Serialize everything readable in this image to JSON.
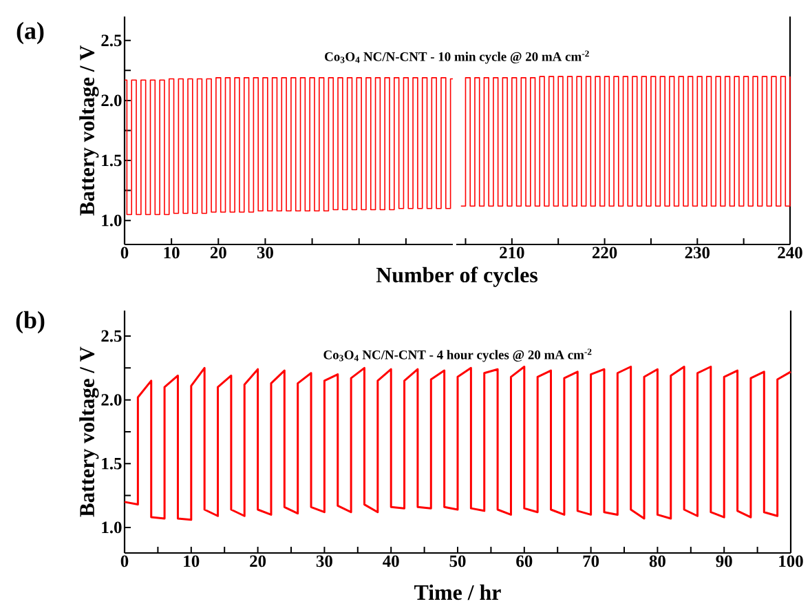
{
  "chart_data": [
    {
      "type": "step",
      "title": "Co$_{3}$O$_{4}$ NC/N-CNT - 10 min cycle @ 20 mA cm$^{-2}$",
      "xlabel": "Number of cycles",
      "ylabel": "Battery voltage / V",
      "annotations": [
        "(a)"
      ],
      "xlim": [
        0,
        70
      ],
      "ylim": [
        0.8,
        2.7
      ],
      "xticks": [
        0,
        10,
        20,
        30,
        {
          "value": 40,
          "label": null
        },
        {
          "value": 50,
          "label": null
        },
        {
          "value": 60,
          "label": null
        }
      ],
      "yticks": [
        {
          "value": 1,
          "label": "1.0"
        },
        {
          "value": 1.25,
          "label": null
        },
        {
          "value": 1.5,
          "label": "1.5"
        },
        {
          "value": 1.75,
          "label": null
        },
        {
          "value": 2,
          "label": "2.0"
        },
        {
          "value": 2.25,
          "label": null
        },
        {
          "value": 2.5,
          "label": "2.5"
        }
      ],
      "series": [
        {
          "color": "#ff0000",
          "x": [
            0,
            0.5,
            1.5,
            2.5,
            3.5,
            4.5,
            5.5,
            6.5,
            7.5,
            8.5,
            9.5,
            10.5,
            11.5,
            12.5,
            13.5,
            14.5,
            15.5,
            16.5,
            17.5,
            18.5,
            19.5,
            20.5,
            21.5,
            22.5,
            23.5,
            24.5,
            25.5,
            26.5,
            27.5,
            28.5,
            29.5,
            30.5,
            31.5,
            32.5,
            33.5,
            34.5,
            35.5,
            36.5,
            37.5,
            38.5,
            39.5,
            40.5,
            41.5,
            42.5,
            43.5,
            44.5,
            45.5,
            46.5,
            47.5,
            48.5,
            49.5,
            50.5,
            51.5,
            52.5,
            53.5,
            54.5,
            55.5,
            56.5,
            57.5,
            58.5,
            59.5,
            60.5,
            61.5,
            62.5,
            63.5,
            64.5,
            65.5,
            66.5,
            67.5,
            68.5,
            69.5,
            70
          ],
          "values": [
            2.17,
            1.05,
            2.17,
            1.05,
            2.17,
            1.05,
            2.17,
            1.05,
            2.17,
            1.05,
            2.18,
            1.06,
            2.18,
            1.06,
            2.18,
            1.06,
            2.18,
            1.06,
            2.18,
            1.07,
            2.19,
            1.07,
            2.19,
            1.07,
            2.19,
            1.07,
            2.19,
            1.07,
            2.19,
            1.08,
            2.19,
            1.08,
            2.19,
            1.08,
            2.19,
            1.08,
            2.19,
            1.08,
            2.19,
            1.08,
            2.19,
            1.08,
            2.19,
            1.08,
            2.19,
            1.09,
            2.19,
            1.09,
            2.19,
            1.09,
            2.19,
            1.09,
            2.19,
            1.09,
            2.19,
            1.09,
            2.19,
            1.09,
            2.19,
            1.1,
            2.19,
            1.1,
            2.19,
            1.1,
            2.19,
            1.1,
            2.19,
            1.1,
            2.19,
            1.1,
            2.18,
            2.18
          ]
        }
      ]
    },
    {
      "type": "step",
      "tick_labels": "x",
      "xlim": [
        204,
        240
      ],
      "ylim": [
        0.8,
        2.7
      ],
      "xticks": [
        {
          "value": 205,
          "label": null
        },
        210,
        {
          "value": 215,
          "label": null
        },
        220,
        {
          "value": 225,
          "label": null
        },
        230,
        {
          "value": 235,
          "label": null
        },
        240
      ],
      "series": [
        {
          "color": "#ff0000",
          "x": [
            204.5,
            205,
            205.5,
            206,
            206.5,
            207,
            207.5,
            208,
            208.5,
            209,
            209.5,
            210,
            210.5,
            211,
            211.5,
            212,
            212.5,
            213,
            213.5,
            214,
            214.5,
            215,
            215.5,
            216,
            216.5,
            217,
            217.5,
            218,
            218.5,
            219,
            219.5,
            220,
            220.5,
            221,
            221.5,
            222,
            222.5,
            223,
            223.5,
            224,
            224.5,
            225,
            225.5,
            226,
            226.5,
            227,
            227.5,
            228,
            228.5,
            229,
            229.5,
            230,
            230.5,
            231,
            231.5,
            232,
            232.5,
            233,
            233.5,
            234,
            234.5,
            235,
            235.5,
            236,
            236.5,
            237,
            237.5,
            238,
            238.5,
            239,
            239.5,
            240
          ],
          "values": [
            1.12,
            2.19,
            1.12,
            2.19,
            1.12,
            2.19,
            1.12,
            2.19,
            1.12,
            2.19,
            1.12,
            2.19,
            1.12,
            2.19,
            1.12,
            2.19,
            1.12,
            2.2,
            1.12,
            2.2,
            1.12,
            2.2,
            1.12,
            2.2,
            1.12,
            2.2,
            1.12,
            2.2,
            1.12,
            2.2,
            1.12,
            2.2,
            1.12,
            2.2,
            1.12,
            2.2,
            1.12,
            2.2,
            1.12,
            2.2,
            1.12,
            2.2,
            1.12,
            2.2,
            1.12,
            2.2,
            1.12,
            2.2,
            1.12,
            2.2,
            1.12,
            2.2,
            1.12,
            2.2,
            1.12,
            2.2,
            1.12,
            2.2,
            1.12,
            2.2,
            1.12,
            2.2,
            1.12,
            2.2,
            1.12,
            2.2,
            1.12,
            2.2,
            1.12,
            2.2,
            1.12,
            2.2
          ]
        }
      ]
    },
    {
      "type": "line",
      "title": "Co$_{3}$O$_{4}$ NC/N-CNT - 4 hour cycles @ 20 mA cm$^{-2}$",
      "xlabel": "Time / hr",
      "ylabel": "Battery voltage / V",
      "annotations": [
        "(b)"
      ],
      "xlim": [
        0,
        100
      ],
      "ylim": [
        0.8,
        2.7
      ],
      "xticks": [
        0,
        {
          "value": 5,
          "label": null
        },
        10,
        {
          "value": 15,
          "label": null
        },
        20,
        {
          "value": 25,
          "label": null
        },
        30,
        {
          "value": 35,
          "label": null
        },
        40,
        {
          "value": 45,
          "label": null
        },
        50,
        {
          "value": 55,
          "label": null
        },
        60,
        {
          "value": 65,
          "label": null
        },
        70,
        {
          "value": 75,
          "label": null
        },
        80,
        {
          "value": 85,
          "label": null
        },
        90,
        {
          "value": 95,
          "label": null
        },
        100
      ],
      "yticks": [
        {
          "value": 1,
          "label": "1.0"
        },
        {
          "value": 1.25,
          "label": null
        },
        {
          "value": 1.5,
          "label": "1.5"
        },
        {
          "value": 1.75,
          "label": null
        },
        {
          "value": 2,
          "label": "2.0"
        },
        {
          "value": 2.25,
          "label": null
        },
        {
          "value": 2.5,
          "label": "2.5"
        }
      ],
      "series": [
        {
          "color": "#ff0000",
          "x": [
            0,
            2,
            2,
            4,
            4,
            6,
            6,
            8,
            8,
            10,
            10,
            12,
            12,
            14,
            14,
            16,
            16,
            18,
            18,
            20,
            20,
            22,
            22,
            24,
            24,
            26,
            26,
            28,
            28,
            30,
            30,
            32,
            32,
            34,
            34,
            36,
            36,
            38,
            38,
            40,
            40,
            42,
            42,
            44,
            44,
            46,
            46,
            48,
            48,
            50,
            50,
            52,
            52,
            54,
            54,
            56,
            56,
            58,
            58,
            60,
            60,
            62,
            62,
            64,
            64,
            66,
            66,
            68,
            68,
            70,
            70,
            72,
            72,
            74,
            74,
            76,
            76,
            78,
            78,
            80,
            80,
            82,
            82,
            84,
            84,
            86,
            86,
            88,
            88,
            90,
            90,
            92,
            92,
            94,
            94,
            96,
            96,
            98,
            98,
            100
          ],
          "values": [
            1.2,
            1.18,
            2.02,
            2.15,
            1.08,
            1.07,
            2.1,
            2.19,
            1.07,
            1.06,
            2.11,
            2.25,
            1.14,
            1.09,
            2.1,
            2.19,
            1.14,
            1.09,
            2.12,
            2.24,
            1.14,
            1.1,
            2.13,
            2.23,
            1.16,
            1.11,
            2.13,
            2.21,
            1.16,
            1.12,
            2.15,
            2.2,
            1.17,
            1.12,
            2.17,
            2.25,
            1.18,
            1.12,
            2.15,
            2.24,
            1.16,
            1.15,
            2.15,
            2.24,
            1.16,
            1.15,
            2.16,
            2.23,
            1.16,
            1.14,
            2.18,
            2.25,
            1.15,
            1.13,
            2.21,
            2.24,
            1.14,
            1.1,
            2.18,
            2.26,
            1.15,
            1.12,
            2.18,
            2.23,
            1.14,
            1.1,
            2.17,
            2.22,
            1.13,
            1.1,
            2.2,
            2.24,
            1.12,
            1.1,
            2.21,
            2.26,
            1.14,
            1.07,
            2.18,
            2.24,
            1.1,
            1.07,
            2.19,
            2.26,
            1.14,
            1.09,
            2.21,
            2.26,
            1.12,
            1.08,
            2.18,
            2.23,
            1.13,
            1.08,
            2.17,
            2.22,
            1.12,
            1.09,
            2.16,
            2.22
          ]
        }
      ]
    }
  ]
}
